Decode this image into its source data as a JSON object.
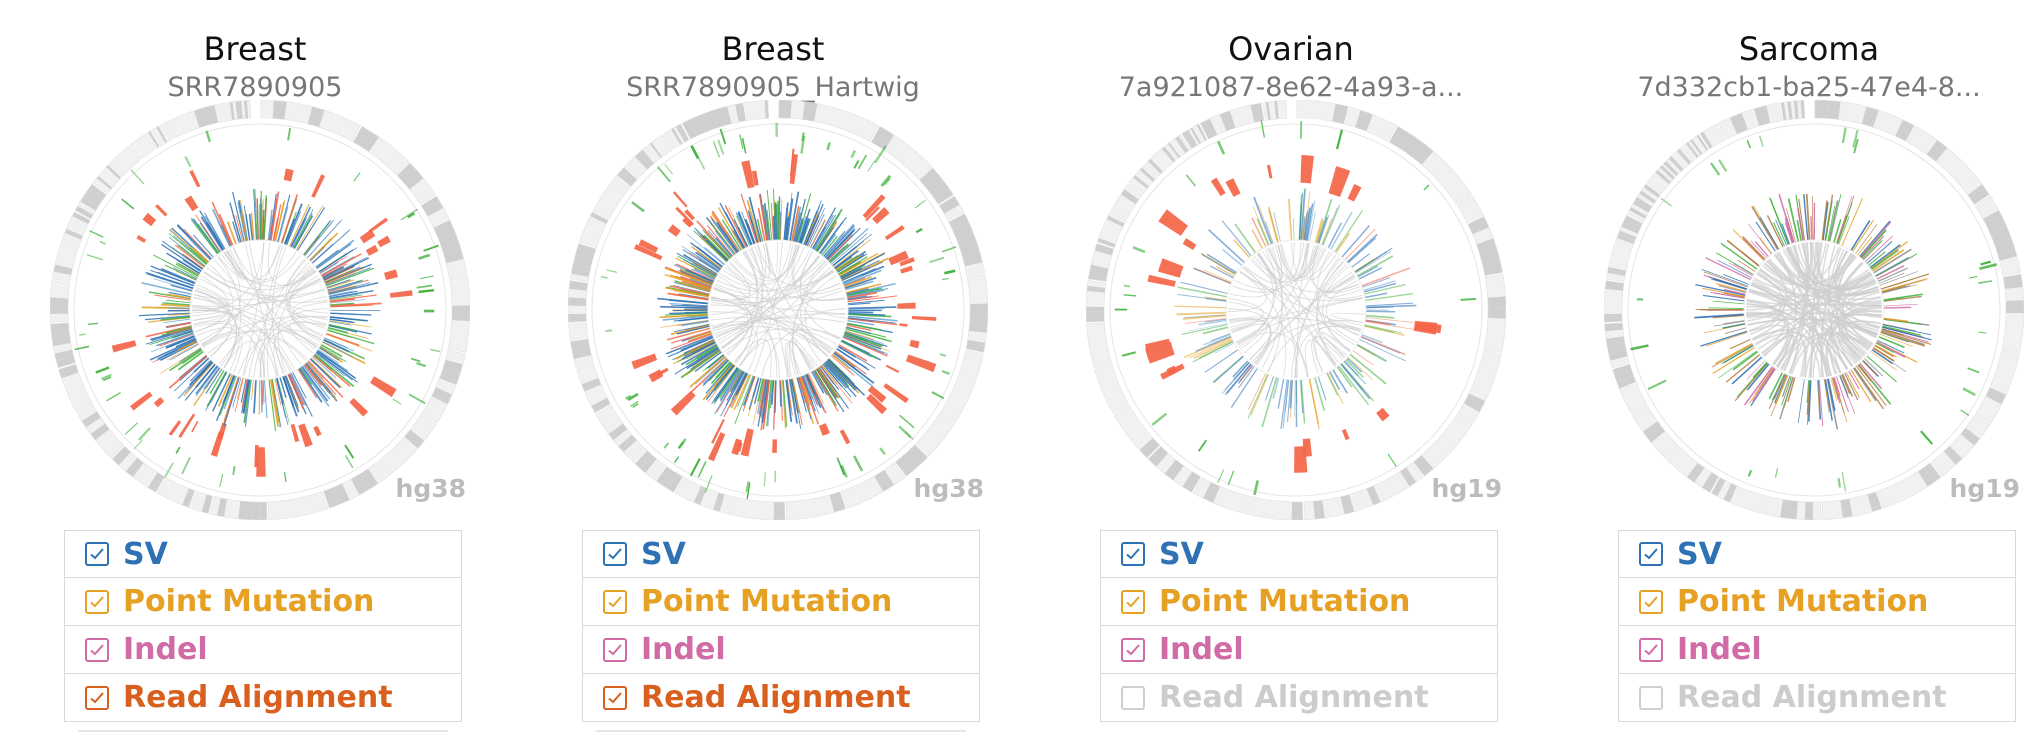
{
  "colors": {
    "sv": "#2e72b5",
    "point_mutation": "#e6a023",
    "indel": "#d16ba5",
    "read_alignment": "#d95f1e",
    "disabled": "#cccccc",
    "cnv": "#f46548",
    "tick_green": "#43b33f",
    "ideogram_light": "#f1f1f1",
    "ideogram_dark": "#cfcfcf"
  },
  "panels": [
    {
      "title": "Breast",
      "subtitle": "SRR7890905",
      "assembly": "hg38",
      "density": "high",
      "legend": [
        {
          "key": "sv",
          "label": "SV",
          "checked": true
        },
        {
          "key": "point_mutation",
          "label": "Point Mutation",
          "checked": true
        },
        {
          "key": "indel",
          "label": "Indel",
          "checked": true
        },
        {
          "key": "read_alignment",
          "label": "Read Alignment",
          "checked": true
        }
      ]
    },
    {
      "title": "Breast",
      "subtitle": "SRR7890905_Hartwig",
      "assembly": "hg38",
      "density": "very-high",
      "legend": [
        {
          "key": "sv",
          "label": "SV",
          "checked": true
        },
        {
          "key": "point_mutation",
          "label": "Point Mutation",
          "checked": true
        },
        {
          "key": "indel",
          "label": "Indel",
          "checked": true
        },
        {
          "key": "read_alignment",
          "label": "Read Alignment",
          "checked": true
        }
      ]
    },
    {
      "title": "Ovarian",
      "subtitle": "7a921087-8e62-4a93-a...",
      "assembly": "hg19",
      "density": "sparse",
      "legend": [
        {
          "key": "sv",
          "label": "SV",
          "checked": true
        },
        {
          "key": "point_mutation",
          "label": "Point Mutation",
          "checked": true
        },
        {
          "key": "indel",
          "label": "Indel",
          "checked": true
        },
        {
          "key": "read_alignment",
          "label": "Read Alignment",
          "checked": false
        }
      ]
    },
    {
      "title": "Sarcoma",
      "subtitle": "7d332cb1-ba25-47e4-8...",
      "assembly": "hg19",
      "density": "colorful",
      "legend": [
        {
          "key": "sv",
          "label": "SV",
          "checked": true
        },
        {
          "key": "point_mutation",
          "label": "Point Mutation",
          "checked": true
        },
        {
          "key": "indel",
          "label": "Indel",
          "checked": true
        },
        {
          "key": "read_alignment",
          "label": "Read Alignment",
          "checked": false
        }
      ]
    }
  ]
}
